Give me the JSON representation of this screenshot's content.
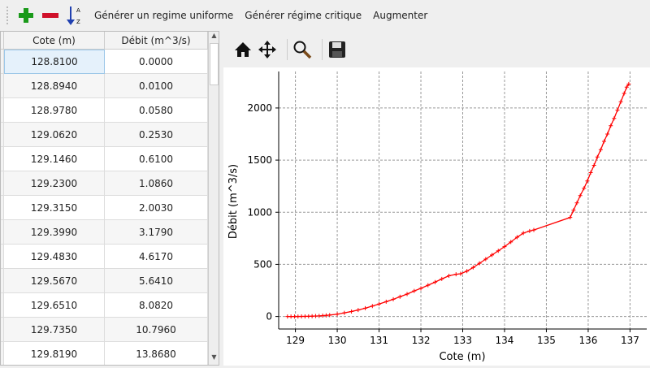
{
  "toolbar": {
    "icons": [
      "add-icon",
      "remove-icon",
      "sort-az-icon"
    ],
    "buttons": [
      "Générer un regime uniforme",
      "Générer régime critique",
      "Augmenter"
    ]
  },
  "table": {
    "headers": [
      "Cote (m)",
      "Débit (m^3/s)"
    ],
    "rows": [
      [
        "128.8100",
        "0.0000"
      ],
      [
        "128.8940",
        "0.0100"
      ],
      [
        "128.9780",
        "0.0580"
      ],
      [
        "129.0620",
        "0.2530"
      ],
      [
        "129.1460",
        "0.6100"
      ],
      [
        "129.2300",
        "1.0860"
      ],
      [
        "129.3150",
        "2.0030"
      ],
      [
        "129.3990",
        "3.1790"
      ],
      [
        "129.4830",
        "4.6170"
      ],
      [
        "129.5670",
        "5.6410"
      ],
      [
        "129.6510",
        "8.0820"
      ],
      [
        "129.7350",
        "10.7960"
      ],
      [
        "129.8190",
        "13.8680"
      ]
    ]
  },
  "plot_toolbar": {
    "icons": [
      "home-icon",
      "pan-icon",
      "zoom-icon",
      "save-icon"
    ]
  },
  "chart_data": {
    "type": "line",
    "xlabel": "Cote (m)",
    "ylabel": "Débit (m^3/s)",
    "xlim": [
      128.6,
      137.4
    ],
    "ylim": [
      -120,
      2350
    ],
    "grid": true,
    "xticks": [
      129,
      130,
      131,
      132,
      133,
      134,
      135,
      136,
      137
    ],
    "yticks": [
      0,
      500,
      1000,
      1500,
      2000
    ],
    "color": "#ff0000",
    "marker": "+",
    "series": [
      {
        "x": [
          128.81,
          128.894,
          128.978,
          129.062,
          129.146,
          129.23,
          129.315,
          129.399,
          129.483,
          129.567,
          129.651,
          129.735,
          129.819,
          130.0,
          130.17,
          130.34,
          130.5,
          130.67,
          130.84,
          131.0,
          131.17,
          131.34,
          131.5,
          131.67,
          131.84,
          132.0,
          132.17,
          132.34,
          132.5,
          132.67,
          132.84,
          132.95,
          133.1,
          133.25,
          133.4,
          133.55,
          133.7,
          133.85,
          134.0,
          134.15,
          134.3,
          134.45,
          134.6,
          134.7,
          135.57,
          135.65,
          135.73,
          135.81,
          135.9,
          135.98,
          136.06,
          136.14,
          136.22,
          136.3,
          136.38,
          136.46,
          136.54,
          136.62,
          136.7,
          136.78,
          136.86,
          136.92,
          136.97
        ],
        "y": [
          0,
          0.01,
          0.058,
          0.253,
          0.61,
          1.086,
          2.003,
          3.179,
          4.617,
          5.641,
          8.082,
          10.796,
          13.868,
          22,
          35,
          48,
          62,
          80,
          100,
          120,
          142,
          165,
          190,
          215,
          245,
          270,
          300,
          330,
          360,
          390,
          405,
          410,
          435,
          470,
          510,
          550,
          590,
          630,
          670,
          715,
          760,
          800,
          820,
          830,
          950,
          1020,
          1090,
          1160,
          1230,
          1300,
          1380,
          1450,
          1530,
          1600,
          1680,
          1750,
          1830,
          1900,
          1980,
          2060,
          2140,
          2200,
          2230
        ]
      }
    ]
  }
}
